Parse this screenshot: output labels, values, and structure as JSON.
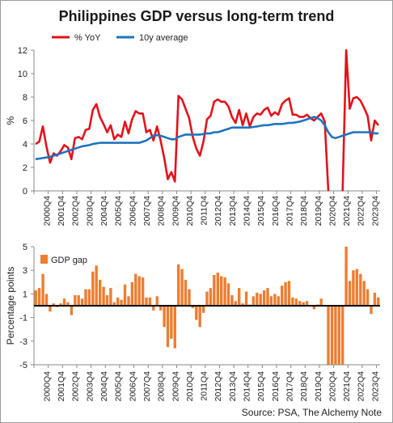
{
  "title": "Philippines GDP versus long-term trend",
  "source": "Source: PSA, The Alchemy Note",
  "chart_data": [
    {
      "type": "line",
      "ylabel": "%",
      "ylim": [
        0,
        12
      ],
      "yticks": [
        0,
        2,
        4,
        6,
        8,
        10,
        12
      ],
      "legend_position": "top-left",
      "grid": false,
      "x_tick_labels": [
        "2000Q4",
        "2001Q4",
        "2002Q4",
        "2003Q4",
        "2004Q4",
        "2005Q4",
        "2006Q4",
        "2007Q4",
        "2008Q4",
        "2009Q4",
        "2010Q4",
        "2011Q4",
        "2012Q4",
        "2013Q4",
        "2014Q4",
        "2015Q4",
        "2016Q4",
        "2017Q4",
        "2018Q4",
        "2019Q4",
        "2020Q4",
        "2021Q4",
        "2022Q4",
        "2023Q4"
      ],
      "x_start": "2000Q1",
      "series": [
        {
          "name": "% YoY",
          "color": "#e3121b",
          "values": [
            4.0,
            4.2,
            5.5,
            3.8,
            2.4,
            3.2,
            3.0,
            3.4,
            3.9,
            3.7,
            2.7,
            4.5,
            4.6,
            4.4,
            5.2,
            5.3,
            6.9,
            7.4,
            6.3,
            5.7,
            5.0,
            5.6,
            4.4,
            4.8,
            4.6,
            5.9,
            4.9,
            6.1,
            6.8,
            6.6,
            6.6,
            5.0,
            5.2,
            4.3,
            5.5,
            4.3,
            2.8,
            1.0,
            1.6,
            0.8,
            8.1,
            7.8,
            7.0,
            6.2,
            4.6,
            3.6,
            3.0,
            4.2,
            6.1,
            6.4,
            7.6,
            7.8,
            7.6,
            7.6,
            7.2,
            6.3,
            5.8,
            6.9,
            5.6,
            6.6,
            5.5,
            6.3,
            6.6,
            6.5,
            6.9,
            7.1,
            6.4,
            6.7,
            6.5,
            7.4,
            7.7,
            7.9,
            6.5,
            6.5,
            6.3,
            6.3,
            6.5,
            6.2,
            6.0,
            6.3,
            6.6,
            5.9,
            0.0,
            null,
            null,
            null,
            -0.4,
            12.0,
            7.0,
            7.9,
            8.0,
            7.7,
            7.1,
            6.4,
            4.3,
            6.0,
            5.6
          ]
        },
        {
          "name": "10y average",
          "color": "#1e73be",
          "values": [
            2.7,
            2.75,
            2.8,
            2.85,
            2.9,
            3.0,
            3.1,
            3.2,
            3.3,
            3.4,
            3.5,
            3.6,
            3.7,
            3.8,
            3.85,
            3.9,
            4.0,
            4.05,
            4.1,
            4.1,
            4.1,
            4.1,
            4.1,
            4.1,
            4.1,
            4.1,
            4.1,
            4.1,
            4.1,
            4.1,
            4.2,
            4.3,
            4.5,
            4.7,
            4.75,
            4.7,
            4.6,
            4.5,
            4.4,
            4.4,
            4.6,
            4.7,
            4.8,
            4.8,
            4.8,
            4.8,
            4.8,
            4.85,
            4.9,
            4.9,
            5.0,
            5.0,
            5.1,
            5.2,
            5.3,
            5.4,
            5.4,
            5.4,
            5.4,
            5.4,
            5.4,
            5.45,
            5.5,
            5.55,
            5.6,
            5.6,
            5.65,
            5.7,
            5.7,
            5.7,
            5.75,
            5.8,
            5.8,
            5.85,
            5.9,
            6.0,
            6.1,
            6.2,
            6.3,
            6.2,
            6.0,
            5.6,
            5.0,
            4.6,
            4.5,
            4.6,
            4.7,
            4.8,
            4.9,
            5.0,
            5.0,
            5.0,
            5.0,
            5.0,
            5.0,
            4.9,
            4.9
          ]
        }
      ]
    },
    {
      "type": "bar",
      "ylabel": "Percentage points",
      "ylim": [
        -5,
        5
      ],
      "yticks": [
        -5,
        -3,
        -1,
        1,
        3,
        5
      ],
      "legend_position": "top-left",
      "grid": false,
      "x_tick_labels": [
        "2000Q4",
        "2001Q4",
        "2002Q4",
        "2003Q4",
        "2004Q4",
        "2005Q4",
        "2006Q4",
        "2007Q4",
        "2008Q4",
        "2009Q4",
        "2010Q4",
        "2011Q4",
        "2012Q4",
        "2013Q4",
        "2014Q4",
        "2015Q4",
        "2016Q4",
        "2017Q4",
        "2018Q4",
        "2019Q4",
        "2020Q4",
        "2021Q4",
        "2022Q4",
        "2023Q4"
      ],
      "x_start": "2000Q1",
      "series": [
        {
          "name": "GDP gap",
          "color": "#ed7d31",
          "values": [
            1.3,
            1.5,
            2.7,
            1.0,
            -0.5,
            0.2,
            -0.1,
            0.2,
            0.6,
            0.3,
            -0.8,
            0.9,
            0.9,
            0.6,
            1.4,
            1.4,
            2.9,
            3.4,
            2.2,
            1.6,
            0.9,
            1.5,
            0.3,
            0.7,
            0.5,
            1.8,
            0.8,
            2.0,
            2.7,
            2.5,
            2.4,
            0.7,
            0.7,
            -0.4,
            0.8,
            -0.4,
            -1.8,
            -3.5,
            -2.8,
            -3.6,
            3.5,
            3.1,
            2.2,
            1.4,
            -0.2,
            -1.2,
            -1.8,
            -0.6,
            1.2,
            1.5,
            2.6,
            2.8,
            2.5,
            2.4,
            1.9,
            0.9,
            0.4,
            1.5,
            0.2,
            1.2,
            0.1,
            0.8,
            1.1,
            1.0,
            1.3,
            1.5,
            0.8,
            1.0,
            0.8,
            1.7,
            2.0,
            2.1,
            0.7,
            0.6,
            0.4,
            0.3,
            0.4,
            0.0,
            -0.3,
            0.1,
            0.6,
            0.0,
            -5.0,
            -5.0,
            -5.0,
            -5.0,
            -5.0,
            5.0,
            2.1,
            3.0,
            3.1,
            2.7,
            2.1,
            1.4,
            -0.7,
            1.1,
            0.7
          ]
        }
      ]
    }
  ]
}
